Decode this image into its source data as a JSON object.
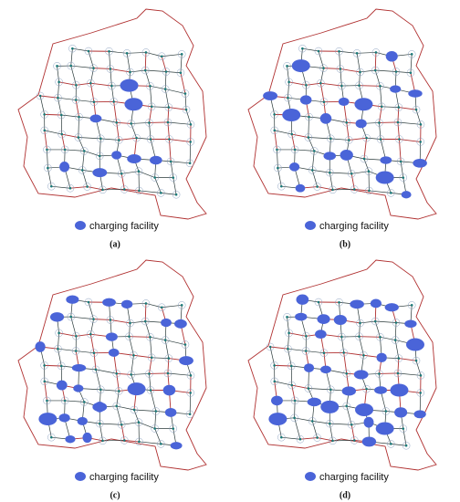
{
  "panels": [
    {
      "label": "(a)",
      "legend": "charging facility"
    },
    {
      "label": "(b)",
      "legend": "charging facility"
    },
    {
      "label": "(c)",
      "legend": "charging facility"
    },
    {
      "label": "(d)",
      "legend": "charging facility"
    }
  ]
}
